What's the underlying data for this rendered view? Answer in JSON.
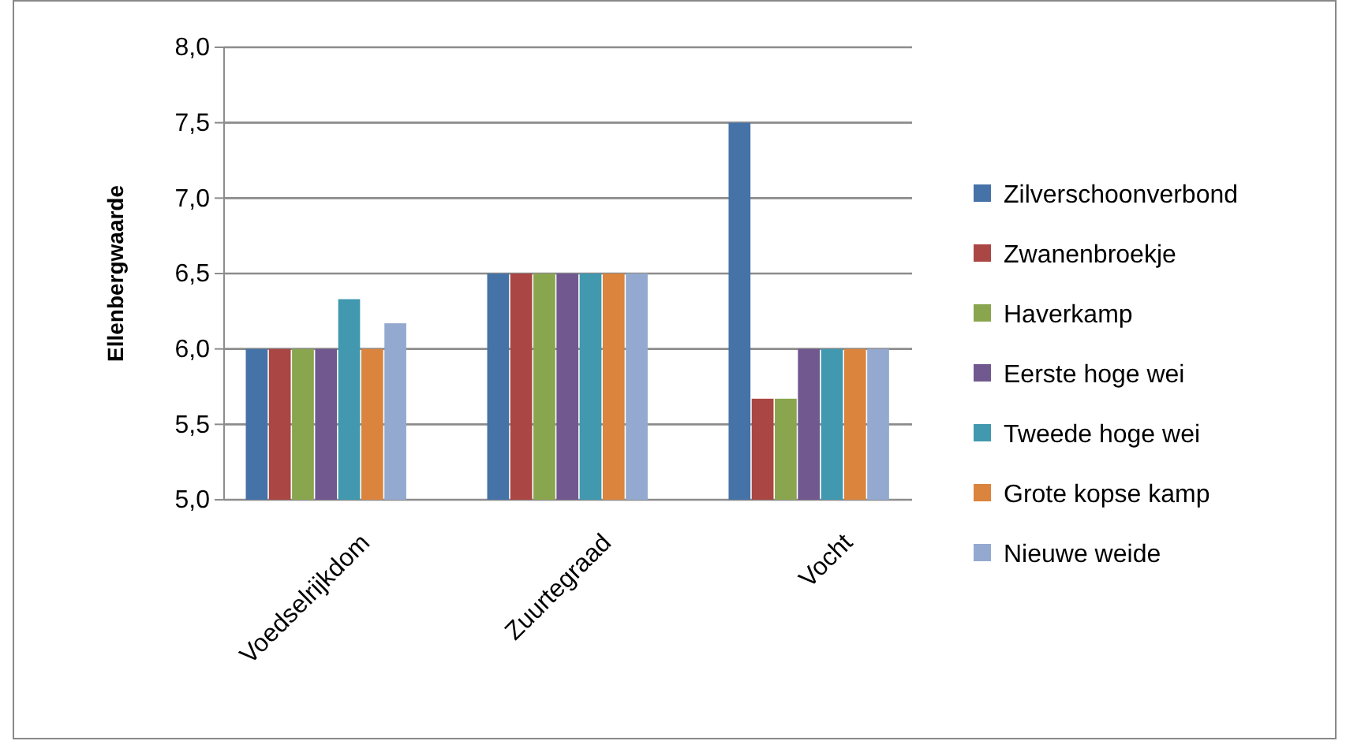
{
  "chart_data": {
    "type": "bar",
    "ylabel": "Ellenbergwaarde",
    "categories": [
      "Voedselrijkdom",
      "Zuurtegraad",
      "Vocht"
    ],
    "series": [
      {
        "name": "Zilverschoonverbond",
        "color": "#4572a7",
        "values": [
          6,
          6.5,
          7.5
        ]
      },
      {
        "name": "Zwanenbroekje",
        "color": "#aa4643",
        "values": [
          6,
          6.5,
          5.67
        ]
      },
      {
        "name": "Haverkamp",
        "color": "#89a54e",
        "values": [
          6,
          6.5,
          5.67
        ]
      },
      {
        "name": "Eerste hoge wei",
        "color": "#71588f",
        "values": [
          6,
          6.5,
          6
        ]
      },
      {
        "name": "Tweede hoge wei",
        "color": "#4198af",
        "values": [
          6.33,
          6.5,
          6
        ]
      },
      {
        "name": "Grote kopse kamp",
        "color": "#db843d",
        "values": [
          6,
          6.5,
          6
        ]
      },
      {
        "name": "Nieuwe weide",
        "color": "#93a9cf",
        "values": [
          6.17,
          6.5,
          6
        ]
      }
    ],
    "ylim": [
      5,
      8
    ],
    "yticks": [
      {
        "value": 5,
        "label": "5,0"
      },
      {
        "value": 5.5,
        "label": "5,5"
      },
      {
        "value": 6,
        "label": "6,0"
      },
      {
        "value": 6.5,
        "label": "6,5"
      },
      {
        "value": 7,
        "label": "7,0"
      },
      {
        "value": 7.5,
        "label": "7,5"
      },
      {
        "value": 8,
        "label": "8,0"
      }
    ],
    "grid": "y",
    "legend": "right"
  }
}
